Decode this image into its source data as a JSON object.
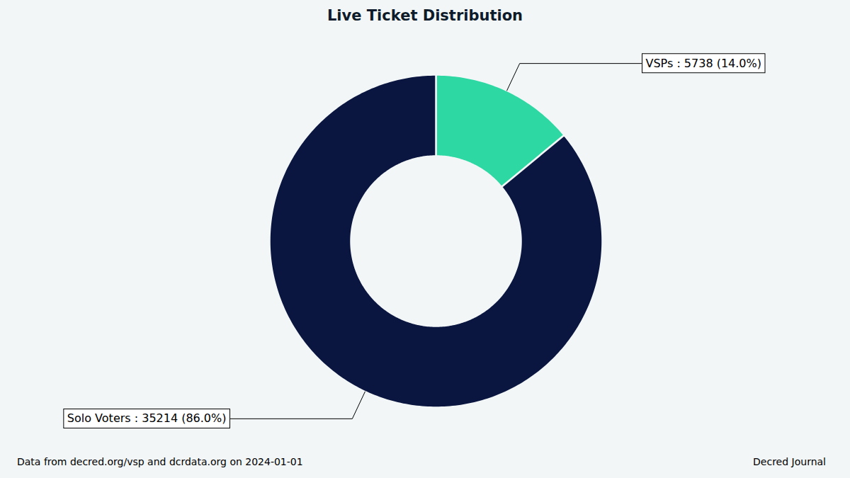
{
  "chart_data": {
    "type": "donut",
    "title": "Live Ticket Distribution",
    "categories": [
      "VSPs",
      "Solo Voters"
    ],
    "values": [
      5738,
      35214
    ],
    "value_labels": [
      "VSPs : 5738 (14.0%)",
      "Solo Voters : 35214 (86.0%)"
    ],
    "colors": [
      "#2ed8a3",
      "#0a1640"
    ],
    "data_labels": true,
    "source": "Data from decred.org/vsp and dcrdata.org on 2024-01-01",
    "credit": "Decred Journal"
  }
}
